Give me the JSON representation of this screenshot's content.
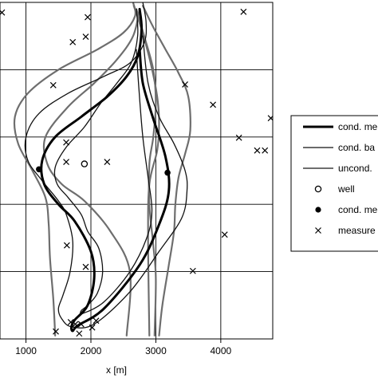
{
  "chart_data": {
    "type": "line",
    "title": "",
    "xlabel": "x [m]",
    "ylabel": "",
    "xlim": [
      600,
      4800
    ],
    "ylim": [
      0,
      5000
    ],
    "x_ticks": [
      1000,
      2000,
      3000,
      4000
    ],
    "x_tick_labels": [
      "1000",
      "2000",
      "3000",
      "4000"
    ],
    "y_ticks": [
      0,
      1000,
      2000,
      3000,
      4000,
      5000
    ],
    "grid": true,
    "legend_position": "right",
    "colors": {
      "conditioned_mean": "#000000",
      "conditioned_band": "#111111",
      "unconditioned": "#6e6e6e",
      "grid": "#000000"
    },
    "legend": [
      {
        "label": "cond. me",
        "style": "thick-line"
      },
      {
        "label": "cond. ba",
        "style": "thin-line"
      },
      {
        "label": "uncond.",
        "style": "gray-line"
      },
      {
        "label": "well",
        "style": "open-circle"
      },
      {
        "label": "cond. me",
        "style": "filled-circle"
      },
      {
        "label": "measure",
        "style": "cross"
      }
    ],
    "series": [
      {
        "name": "cond. me",
        "role": "cond-mean",
        "style": "thick",
        "x": [
          2750,
          2780,
          2720,
          2550,
          2250,
          1850,
          1450,
          1250,
          1280,
          1500,
          1750,
          2000,
          2050,
          1950,
          1750,
          1700,
          1720,
          1800,
          2200,
          2750,
          3050,
          3200,
          3150,
          2950,
          2800,
          2750
        ],
        "y": [
          4900,
          4600,
          4200,
          3900,
          3600,
          3300,
          3000,
          2650,
          2300,
          2000,
          1750,
          1300,
          900,
          500,
          280,
          180,
          120,
          200,
          450,
          1100,
          1700,
          2200,
          2700,
          3300,
          3800,
          4300
        ]
      },
      {
        "name": "cond. ba",
        "role": "cond-band-outer",
        "style": "thin",
        "x": [
          2800,
          2850,
          2820,
          2600,
          2200,
          1650,
          1200,
          1000,
          1030,
          1250,
          1500,
          1620,
          1720,
          1680,
          1570,
          1500,
          1550,
          1700,
          2050,
          2600,
          3050,
          3400,
          3480,
          3450,
          3280,
          3050,
          2880,
          2800
        ],
        "y": [
          5000,
          4700,
          4400,
          4100,
          3900,
          3650,
          3350,
          3000,
          2650,
          2350,
          2050,
          1850,
          1450,
          1000,
          650,
          450,
          300,
          180,
          220,
          700,
          1300,
          1800,
          2200,
          2500,
          2900,
          3300,
          3800,
          4500
        ]
      },
      {
        "name": "cond. ba",
        "role": "cond-band-inner",
        "style": "thin",
        "x": [
          2700,
          2720,
          2620,
          2400,
          2150,
          1900,
          1620,
          1450,
          1480,
          1650,
          1850,
          1950,
          2120,
          2180,
          2100,
          1950,
          1850,
          1880,
          2200,
          2600,
          2860,
          2940,
          2880,
          2800,
          2740,
          2700
        ],
        "y": [
          4900,
          4500,
          4100,
          3800,
          3500,
          3150,
          2850,
          2550,
          2300,
          2100,
          1850,
          1600,
          1350,
          1000,
          680,
          500,
          420,
          380,
          550,
          1000,
          1500,
          1900,
          2400,
          3000,
          3700,
          4300
        ]
      },
      {
        "name": "uncond.",
        "role": "uncond-outer",
        "style": "gray",
        "x": [
          2650,
          2680,
          2500,
          2100,
          1500,
          1030,
          830,
          880,
          1100,
          1300,
          1350,
          1370,
          1420,
          1450
        ],
        "y": [
          5000,
          4800,
          4550,
          4300,
          4000,
          3650,
          3300,
          2900,
          2500,
          2100,
          1700,
          1200,
          600,
          50
        ]
      },
      {
        "name": "uncond.",
        "role": "uncond-outer",
        "style": "gray",
        "x": [
          2800,
          2950,
          3150,
          3350,
          3500,
          3530,
          3450,
          3350,
          3300,
          3280,
          3200,
          3100,
          3050
        ],
        "y": [
          4950,
          4650,
          4300,
          3950,
          3600,
          3100,
          2750,
          2400,
          2000,
          1600,
          1100,
          500,
          50
        ]
      },
      {
        "name": "uncond.",
        "role": "uncond-inner",
        "style": "gray",
        "x": [
          2750,
          2650,
          2400,
          2050,
          1650,
          1300,
          1330,
          1550,
          1900,
          2300,
          2600,
          2550
        ],
        "y": [
          4900,
          4500,
          4150,
          3800,
          3450,
          3000,
          2600,
          2300,
          2050,
          1600,
          1000,
          50
        ]
      },
      {
        "name": "uncond.",
        "role": "uncond-inner",
        "style": "gray",
        "x": [
          2700,
          2820,
          2960,
          3000,
          2960,
          2900,
          2900,
          2960,
          3000,
          2980
        ],
        "y": [
          4900,
          4500,
          4000,
          3500,
          3000,
          2600,
          2000,
          1400,
          900,
          50
        ]
      },
      {
        "name": "uncond.",
        "role": "uncond-inner",
        "style": "gray",
        "x": [
          2660,
          2780,
          2920,
          3020,
          3050,
          3020,
          2900,
          2880,
          2900
        ],
        "y": [
          4950,
          4600,
          4100,
          3600,
          3200,
          2800,
          2300,
          1500,
          50
        ]
      }
    ],
    "well": [
      {
        "x": 1900,
        "y": 2600
      }
    ],
    "cond_points": [
      {
        "x": 1200,
        "y": 2520
      },
      {
        "x": 3180,
        "y": 2470
      }
    ],
    "measurements": [
      {
        "x": 630,
        "y": 4850
      },
      {
        "x": 1950,
        "y": 4780
      },
      {
        "x": 1720,
        "y": 4410
      },
      {
        "x": 1920,
        "y": 4490
      },
      {
        "x": 4350,
        "y": 4860
      },
      {
        "x": 1420,
        "y": 3770
      },
      {
        "x": 3450,
        "y": 3780
      },
      {
        "x": 3880,
        "y": 3480
      },
      {
        "x": 4770,
        "y": 3280
      },
      {
        "x": 4280,
        "y": 2990
      },
      {
        "x": 4560,
        "y": 2800
      },
      {
        "x": 4680,
        "y": 2800
      },
      {
        "x": 1620,
        "y": 2920
      },
      {
        "x": 1620,
        "y": 2630
      },
      {
        "x": 2250,
        "y": 2630
      },
      {
        "x": 1630,
        "y": 1390
      },
      {
        "x": 4060,
        "y": 1550
      },
      {
        "x": 3570,
        "y": 1010
      },
      {
        "x": 1920,
        "y": 1070
      },
      {
        "x": 1850,
        "y": 220
      },
      {
        "x": 1460,
        "y": 110
      },
      {
        "x": 1820,
        "y": 80
      },
      {
        "x": 1690,
        "y": 250
      },
      {
        "x": 1760,
        "y": 220
      },
      {
        "x": 2080,
        "y": 270
      },
      {
        "x": 2020,
        "y": 170
      }
    ]
  }
}
